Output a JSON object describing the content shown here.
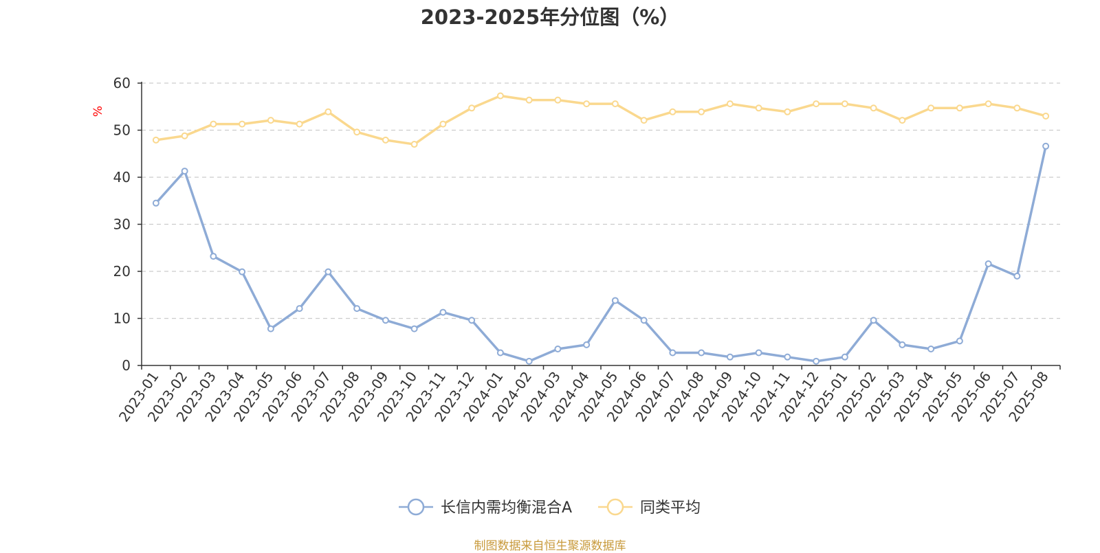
{
  "chart_data": {
    "type": "line",
    "title": "2023-2025年分位图（%）",
    "ylabel": "%",
    "xlabel": "",
    "ylim": [
      0,
      60
    ],
    "yticks": [
      0,
      10,
      20,
      30,
      40,
      50,
      60
    ],
    "grid": "horizontal dashed",
    "legend_position": "bottom-center",
    "categories": [
      "2023-01",
      "2023-02",
      "2023-03",
      "2023-04",
      "2023-05",
      "2023-06",
      "2023-07",
      "2023-08",
      "2023-09",
      "2023-10",
      "2023-11",
      "2023-12",
      "2024-01",
      "2024-02",
      "2024-03",
      "2024-04",
      "2024-05",
      "2024-06",
      "2024-07",
      "2024-08",
      "2024-09",
      "2024-10",
      "2024-11",
      "2024-12",
      "2025-01",
      "2025-02",
      "2025-03",
      "2025-04",
      "2025-05",
      "2025-06",
      "2025-07",
      "2025-08"
    ],
    "series": [
      {
        "name": "长信内需均衡混合A",
        "color": "#8eabd6",
        "values": [
          34.5,
          41.3,
          23.2,
          19.9,
          7.8,
          12.1,
          19.9,
          12.1,
          9.6,
          7.8,
          11.3,
          9.6,
          2.7,
          0.9,
          3.5,
          4.4,
          13.8,
          9.6,
          2.7,
          2.7,
          1.8,
          2.7,
          1.8,
          0.9,
          1.8,
          9.6,
          4.4,
          3.5,
          5.2,
          21.6,
          19.0,
          46.6
        ]
      },
      {
        "name": "同类平均",
        "color": "#fad88e",
        "values": [
          47.9,
          48.8,
          51.3,
          51.3,
          52.1,
          51.3,
          53.9,
          49.6,
          47.9,
          47.0,
          51.3,
          54.7,
          57.3,
          56.4,
          56.4,
          55.6,
          55.6,
          52.1,
          53.9,
          53.9,
          55.6,
          54.7,
          53.9,
          55.6,
          55.6,
          54.7,
          52.1,
          54.7,
          54.7,
          55.6,
          54.7,
          53.0
        ]
      }
    ]
  },
  "source_note": "制图数据来自恒生聚源数据库"
}
